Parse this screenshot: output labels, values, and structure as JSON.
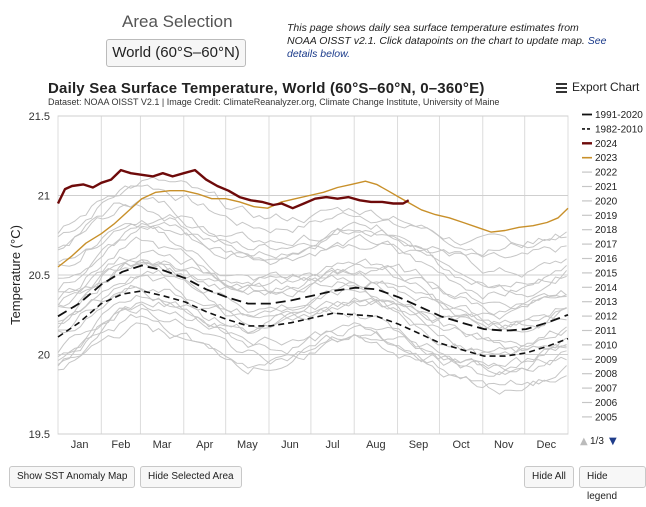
{
  "area": {
    "title": "Area Selection",
    "selected": "World (60°S–60°N)"
  },
  "intro": {
    "text": "This page shows daily sea surface temperature estimates from NOAA OISST v2.1. Click datapoints on the chart to update map.",
    "link": "See details below."
  },
  "header": {
    "title": "Daily Sea Surface Temperature, World (60°S–60°N, 0–360°E)",
    "subtitle": "Dataset: NOAA OISST V2.1 | Image Credit: ClimateReanalyzer.org, Climate Change Institute, University of Maine",
    "export_label": "Export Chart"
  },
  "colors": {
    "y2024": "#6e0a0a",
    "y2023": "#c8902a",
    "mean": "#111111",
    "past": "#c6c6c6",
    "grid": "#dcdcdc"
  },
  "chart_data": {
    "type": "line",
    "title": "Daily Sea Surface Temperature, World (60°S–60°N, 0–360°E)",
    "ylabel": "Temperature (°C)",
    "xlabel": "",
    "ylim": [
      19.5,
      21.5
    ],
    "yticks": [
      "19.5",
      "20",
      "20.5",
      "21",
      "21.5"
    ],
    "months": [
      "Jan",
      "Feb",
      "Mar",
      "Apr",
      "May",
      "Jun",
      "Jul",
      "Aug",
      "Sep",
      "Oct",
      "Nov",
      "Dec"
    ],
    "series": [
      {
        "name": "1991-2020",
        "style": "mean",
        "points": [
          [
            0,
            20.24
          ],
          [
            15,
            20.32
          ],
          [
            31,
            20.44
          ],
          [
            46,
            20.52
          ],
          [
            60,
            20.56
          ],
          [
            75,
            20.53
          ],
          [
            91,
            20.48
          ],
          [
            106,
            20.41
          ],
          [
            121,
            20.36
          ],
          [
            136,
            20.32
          ],
          [
            152,
            20.32
          ],
          [
            167,
            20.34
          ],
          [
            182,
            20.37
          ],
          [
            197,
            20.4
          ],
          [
            213,
            20.42
          ],
          [
            228,
            20.41
          ],
          [
            244,
            20.36
          ],
          [
            259,
            20.3
          ],
          [
            274,
            20.24
          ],
          [
            289,
            20.2
          ],
          [
            305,
            20.16
          ],
          [
            320,
            20.15
          ],
          [
            335,
            20.16
          ],
          [
            350,
            20.2
          ],
          [
            365,
            20.25
          ]
        ]
      },
      {
        "name": "1982-2010",
        "style": "mean-dashed",
        "points": [
          [
            0,
            20.11
          ],
          [
            15,
            20.2
          ],
          [
            31,
            20.32
          ],
          [
            46,
            20.38
          ],
          [
            60,
            20.4
          ],
          [
            75,
            20.37
          ],
          [
            91,
            20.33
          ],
          [
            106,
            20.27
          ],
          [
            121,
            20.22
          ],
          [
            136,
            20.18
          ],
          [
            152,
            20.18
          ],
          [
            167,
            20.2
          ],
          [
            182,
            20.23
          ],
          [
            197,
            20.26
          ],
          [
            213,
            20.25
          ],
          [
            228,
            20.24
          ],
          [
            244,
            20.19
          ],
          [
            259,
            20.13
          ],
          [
            274,
            20.07
          ],
          [
            289,
            20.03
          ],
          [
            305,
            19.99
          ],
          [
            320,
            19.99
          ],
          [
            335,
            20.01
          ],
          [
            350,
            20.05
          ],
          [
            365,
            20.1
          ]
        ]
      },
      {
        "name": "2024",
        "style": "highlight",
        "points": [
          [
            0,
            20.95
          ],
          [
            5,
            21.04
          ],
          [
            10,
            21.06
          ],
          [
            18,
            21.07
          ],
          [
            25,
            21.05
          ],
          [
            31,
            21.08
          ],
          [
            38,
            21.1
          ],
          [
            45,
            21.16
          ],
          [
            52,
            21.14
          ],
          [
            60,
            21.13
          ],
          [
            68,
            21.12
          ],
          [
            75,
            21.14
          ],
          [
            82,
            21.12
          ],
          [
            90,
            21.14
          ],
          [
            98,
            21.16
          ],
          [
            106,
            21.1
          ],
          [
            114,
            21.06
          ],
          [
            122,
            21.03
          ],
          [
            130,
            20.99
          ],
          [
            138,
            20.97
          ],
          [
            146,
            20.96
          ],
          [
            154,
            20.94
          ],
          [
            160,
            20.95
          ],
          [
            168,
            20.92
          ],
          [
            176,
            20.95
          ],
          [
            184,
            20.98
          ],
          [
            192,
            20.99
          ],
          [
            200,
            20.98
          ],
          [
            208,
            20.99
          ],
          [
            216,
            20.97
          ],
          [
            224,
            20.96
          ],
          [
            232,
            20.96
          ],
          [
            240,
            20.95
          ],
          [
            247,
            20.95
          ],
          [
            251,
            20.97
          ]
        ]
      },
      {
        "name": "2023",
        "style": "recent",
        "points": [
          [
            0,
            20.55
          ],
          [
            10,
            20.62
          ],
          [
            20,
            20.7
          ],
          [
            31,
            20.76
          ],
          [
            40,
            20.82
          ],
          [
            50,
            20.9
          ],
          [
            60,
            20.98
          ],
          [
            70,
            21.02
          ],
          [
            80,
            21.03
          ],
          [
            90,
            21.03
          ],
          [
            100,
            21.01
          ],
          [
            110,
            20.98
          ],
          [
            120,
            20.98
          ],
          [
            130,
            20.96
          ],
          [
            140,
            20.93
          ],
          [
            150,
            20.92
          ],
          [
            160,
            20.96
          ],
          [
            170,
            20.98
          ],
          [
            180,
            21.0
          ],
          [
            190,
            21.02
          ],
          [
            200,
            21.05
          ],
          [
            210,
            21.07
          ],
          [
            220,
            21.09
          ],
          [
            228,
            21.07
          ],
          [
            236,
            21.03
          ],
          [
            244,
            20.99
          ],
          [
            252,
            20.95
          ],
          [
            260,
            20.91
          ],
          [
            270,
            20.88
          ],
          [
            280,
            20.86
          ],
          [
            290,
            20.83
          ],
          [
            300,
            20.8
          ],
          [
            310,
            20.77
          ],
          [
            320,
            20.78
          ],
          [
            330,
            20.8
          ],
          [
            340,
            20.81
          ],
          [
            350,
            20.83
          ],
          [
            358,
            20.86
          ],
          [
            365,
            20.92
          ]
        ]
      },
      {
        "name": "2022",
        "style": "past"
      },
      {
        "name": "2021",
        "style": "past"
      },
      {
        "name": "2020",
        "style": "past"
      },
      {
        "name": "2019",
        "style": "past"
      },
      {
        "name": "2018",
        "style": "past"
      },
      {
        "name": "2017",
        "style": "past"
      },
      {
        "name": "2016",
        "style": "past"
      },
      {
        "name": "2015",
        "style": "past"
      },
      {
        "name": "2014",
        "style": "past"
      },
      {
        "name": "2013",
        "style": "past"
      },
      {
        "name": "2012",
        "style": "past"
      },
      {
        "name": "2011",
        "style": "past"
      },
      {
        "name": "2010",
        "style": "past"
      },
      {
        "name": "2009",
        "style": "past"
      },
      {
        "name": "2008",
        "style": "past"
      },
      {
        "name": "2007",
        "style": "past"
      },
      {
        "name": "2006",
        "style": "past"
      },
      {
        "name": "2005",
        "style": "past"
      }
    ],
    "past_years_offsets": [
      0.5,
      0.4,
      0.38,
      0.3,
      0.28,
      0.35,
      0.52,
      0.16,
      0.12,
      0.08,
      0.04,
      0.06,
      0.12,
      0.0,
      -0.06,
      -0.1,
      -0.14,
      -0.08,
      -0.18,
      -0.22,
      -0.26,
      -0.3,
      -0.34,
      -0.36
    ],
    "legend_page": "1/3"
  },
  "buttons": {
    "anomaly": "Show SST Anomaly Map",
    "hide_area": "Hide Selected Area",
    "hide_all": "Hide All",
    "hide_legend": "Hide legend"
  }
}
